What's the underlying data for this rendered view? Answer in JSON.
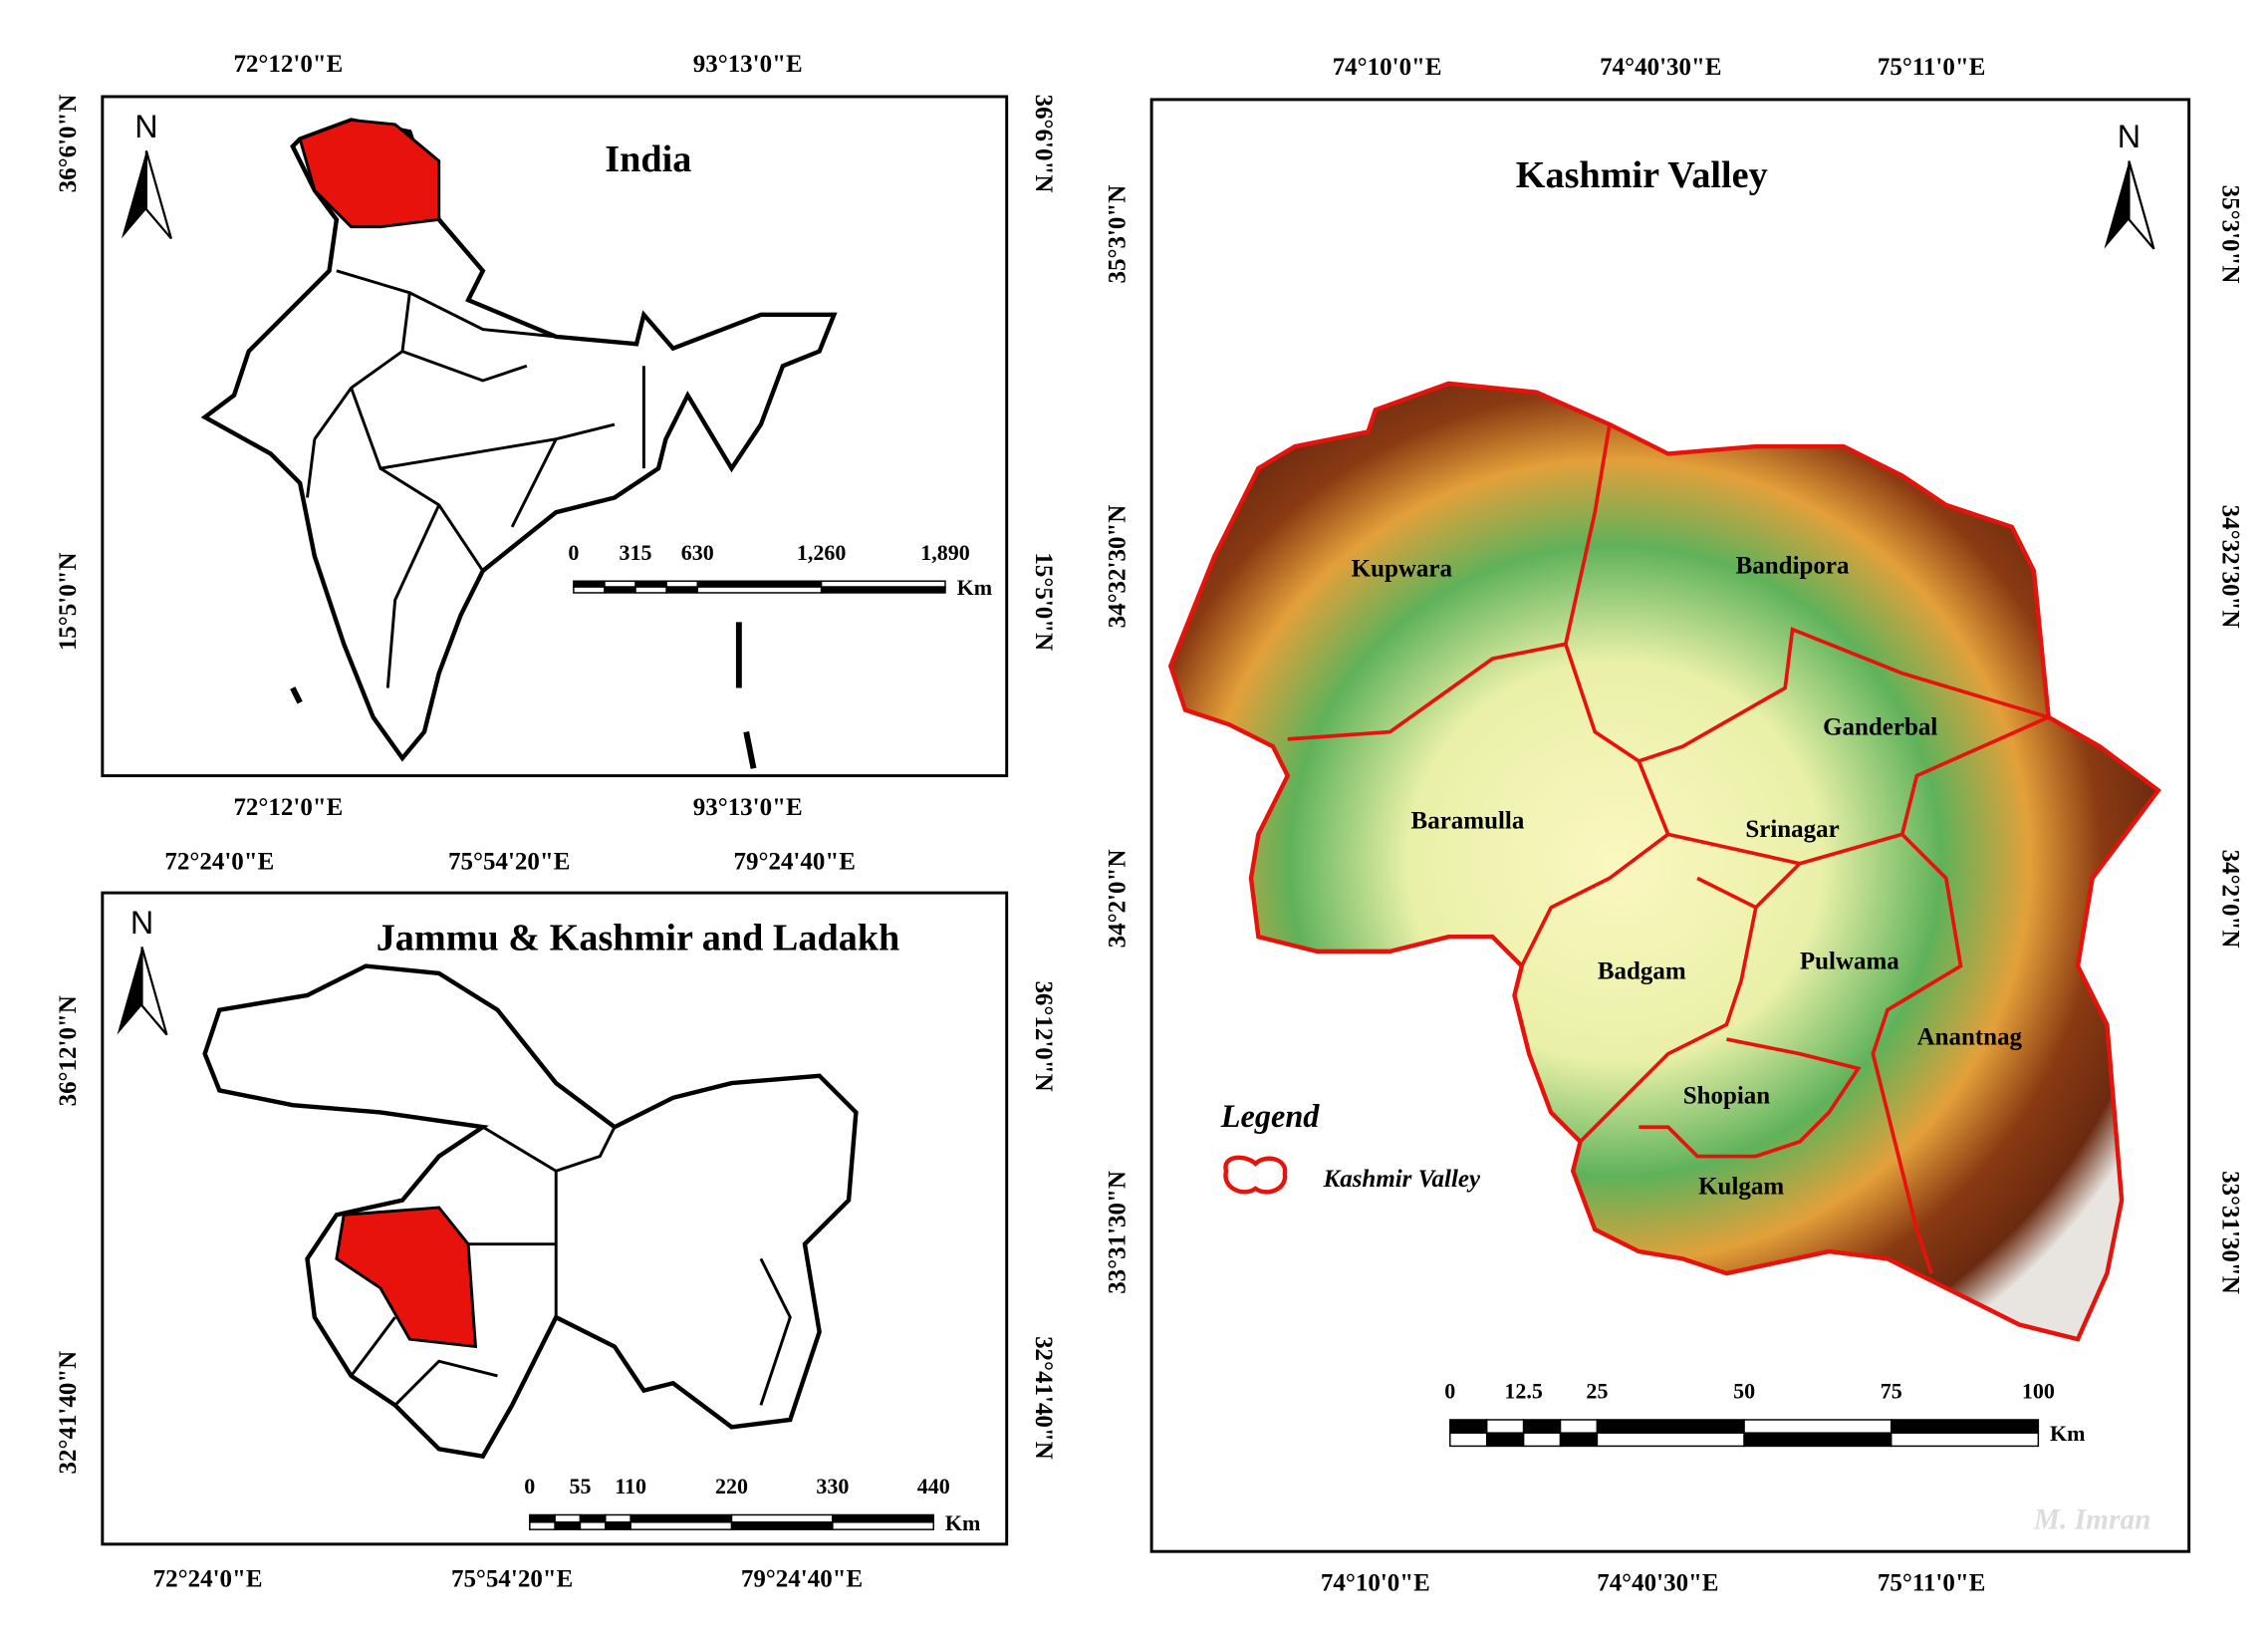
{
  "india": {
    "title": "India",
    "north": "N",
    "top_labels": [
      "72°12'0\"E",
      "93°13'0\"E"
    ],
    "bottom_labels": [
      "72°12'0\"E",
      "93°13'0\"E"
    ],
    "left_labels": [
      "36°6'0\"N",
      "15°5'0\"N"
    ],
    "right_labels": [
      "36°6'0\"N",
      "15°5'0\"N"
    ],
    "scale_labels": [
      "0",
      "315",
      "630",
      "1,260",
      "1,890"
    ],
    "scale_unit": "Km"
  },
  "jk": {
    "title": "Jammu & Kashmir and Ladakh",
    "north": "N",
    "top_labels": [
      "72°24'0\"E",
      "75°54'20\"E",
      "79°24'40\"E"
    ],
    "bottom_labels": [
      "72°24'0\"E",
      "75°54'20\"E",
      "79°24'40\"E"
    ],
    "left_labels": [
      "36°12'0\"N",
      "32°41'40\"N"
    ],
    "right_labels": [
      "36°12'0\"N",
      "32°41'40\"N"
    ],
    "scale_labels": [
      "0",
      "55",
      "110",
      "220",
      "330",
      "440"
    ],
    "scale_unit": "Km"
  },
  "kashmir": {
    "title": "Kashmir Valley",
    "north": "N",
    "top_labels": [
      "74°10'0\"E",
      "74°40'30\"E",
      "75°11'0\"E"
    ],
    "bottom_labels": [
      "74°10'0\"E",
      "74°40'30\"E",
      "75°11'0\"E"
    ],
    "left_labels": [
      "35°3'0\"N",
      "34°32'30\"N",
      "34°2'0\"N",
      "33°31'30\"N"
    ],
    "right_labels": [
      "35°3'0\"N",
      "34°32'30\"N",
      "34°2'0\"N",
      "33°31'30\"N"
    ],
    "districts": [
      "Kupwara",
      "Bandipora",
      "Ganderbal",
      "Baramulla",
      "Srinagar",
      "Badgam",
      "Pulwama",
      "Anantnag",
      "Shopian",
      "Kulgam"
    ],
    "legend_title": "Legend",
    "legend_item": "Kashmir Valley",
    "scale_labels": [
      "0",
      "12.5",
      "25",
      "50",
      "75",
      "100"
    ],
    "scale_unit": "Km",
    "credit": "M. Imran"
  }
}
